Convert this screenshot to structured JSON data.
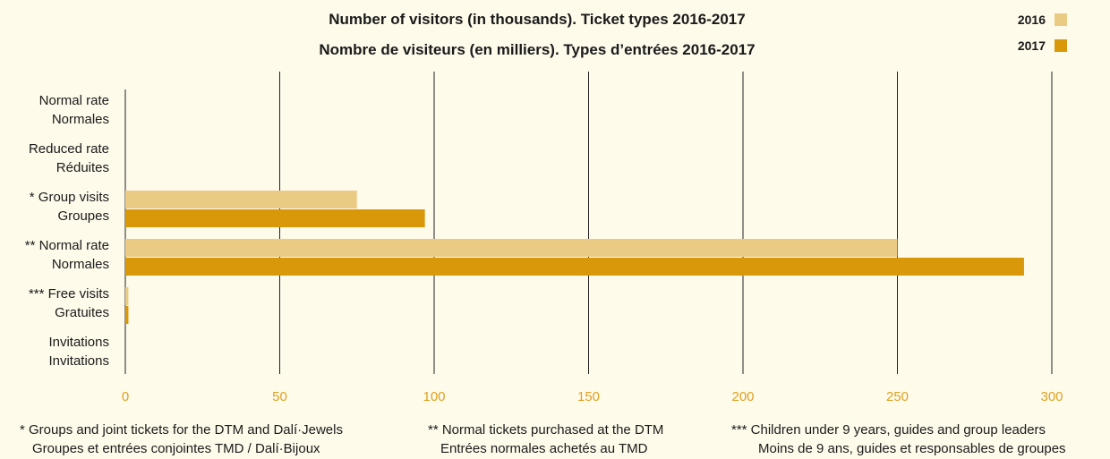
{
  "chart_data": {
    "type": "bar",
    "orientation": "horizontal",
    "title": "Number of visitors (in thousands). Ticket types 2016-2017",
    "subtitle": "Nombre de visiteurs (en milliers). Types d’entrées 2016-2017",
    "categories": [
      [
        "Normal rate",
        "Normales"
      ],
      [
        "Reduced rate",
        "Réduites"
      ],
      [
        "* Group visits",
        "Groupes"
      ],
      [
        "** Normal rate",
        "Normales"
      ],
      [
        "*** Free visits",
        "Gratuites"
      ],
      [
        "Invitations",
        "Invitations"
      ]
    ],
    "series": [
      {
        "name": "2016",
        "color": "#ebcb84",
        "values": [
          0,
          0,
          75,
          250,
          1,
          0
        ]
      },
      {
        "name": "2017",
        "color": "#d9980a",
        "values": [
          0,
          0,
          97,
          291,
          1,
          0
        ]
      }
    ],
    "xlim": [
      0,
      300
    ],
    "xticks": [
      "0",
      "50",
      "100",
      "150",
      "200",
      "250",
      "300"
    ],
    "tick_color": "#e0a020",
    "grid": true,
    "legend_position": "top-right"
  },
  "footnotes": [
    {
      "line1": "* Groups and joint tickets for the DTM and Dalí·Jewels",
      "line2": "Groupes et entrées conjointes TMD / Dalí·Bijoux"
    },
    {
      "line1": "** Normal tickets purchased at the DTM",
      "line2": "Entrées normales achetés au TMD"
    },
    {
      "line1": "*** Children under 9 years, guides and group leaders",
      "line2": "Moins de 9 ans, guides et responsables de groupes"
    }
  ]
}
